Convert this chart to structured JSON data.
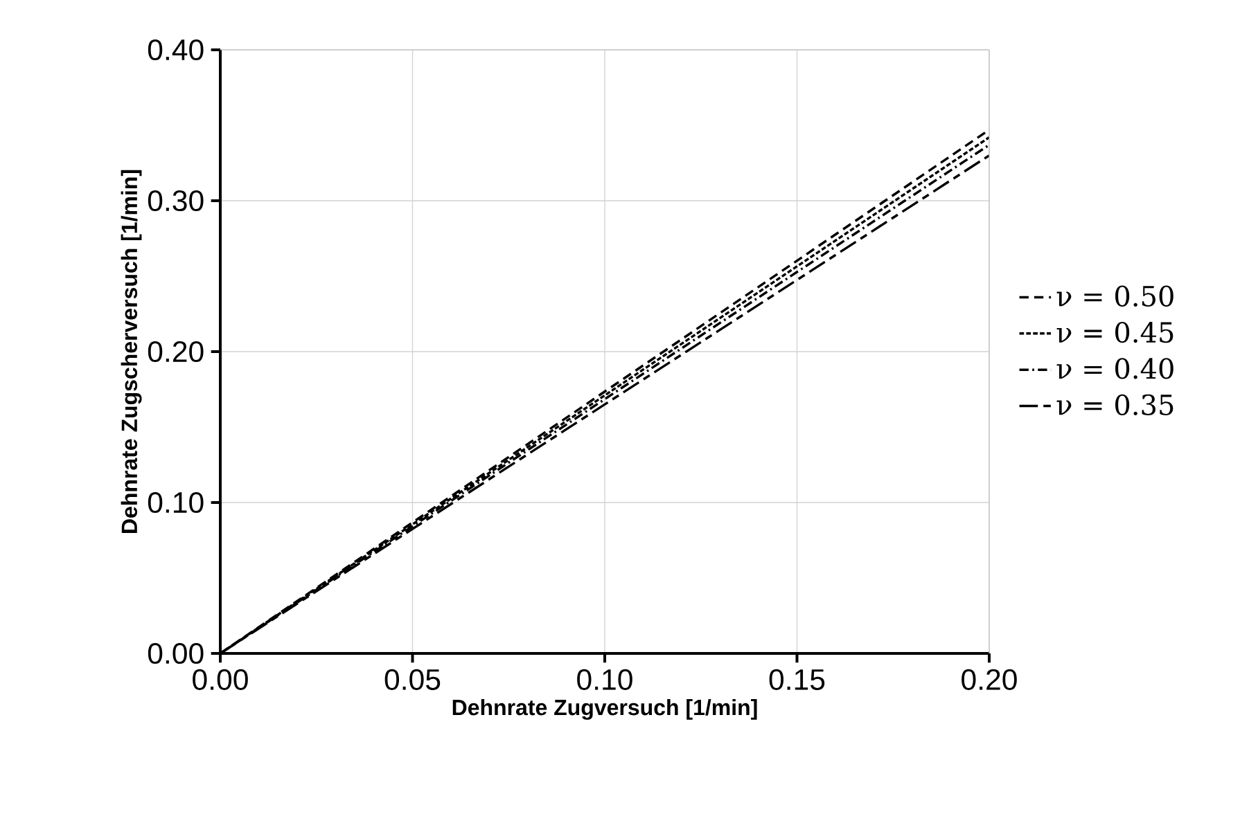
{
  "chart_data": {
    "type": "line",
    "xlabel": "Dehnrate Zugversuch [1/min]",
    "ylabel": "Dehnrate Zugscherversuch [1/min]",
    "x": [
      0,
      0.2
    ],
    "series": [
      {
        "name": "ν = 0.50",
        "color": "#000000",
        "values": [
          0,
          0.347
        ],
        "line_style": "dashed"
      },
      {
        "name": "ν = 0.45",
        "color": "#000000",
        "values": [
          0,
          0.342
        ],
        "line_style": "dotted"
      },
      {
        "name": "ν = 0.40",
        "color": "#000000",
        "values": [
          0,
          0.337
        ],
        "line_style": "dashdot"
      },
      {
        "name": "ν = 0.35",
        "color": "#000000",
        "values": [
          0,
          0.33
        ],
        "line_style": "longdash"
      }
    ],
    "xlim": [
      0,
      0.2
    ],
    "ylim": [
      0,
      0.4
    ],
    "xticks": [
      {
        "value": 0,
        "label": "0.00"
      },
      {
        "value": 0.05,
        "label": "0.05"
      },
      {
        "value": 0.1,
        "label": "0.10"
      },
      {
        "value": 0.15,
        "label": "0.15"
      },
      {
        "value": 0.2,
        "label": "0.20"
      }
    ],
    "yticks": [
      {
        "value": 0,
        "label": "0.00"
      },
      {
        "value": 0.1,
        "label": "0.10"
      },
      {
        "value": 0.2,
        "label": "0.20"
      },
      {
        "value": 0.3,
        "label": "0.30"
      },
      {
        "value": 0.4,
        "label": "0.40"
      }
    ],
    "grid": true,
    "legend": "right",
    "marker": "none"
  }
}
